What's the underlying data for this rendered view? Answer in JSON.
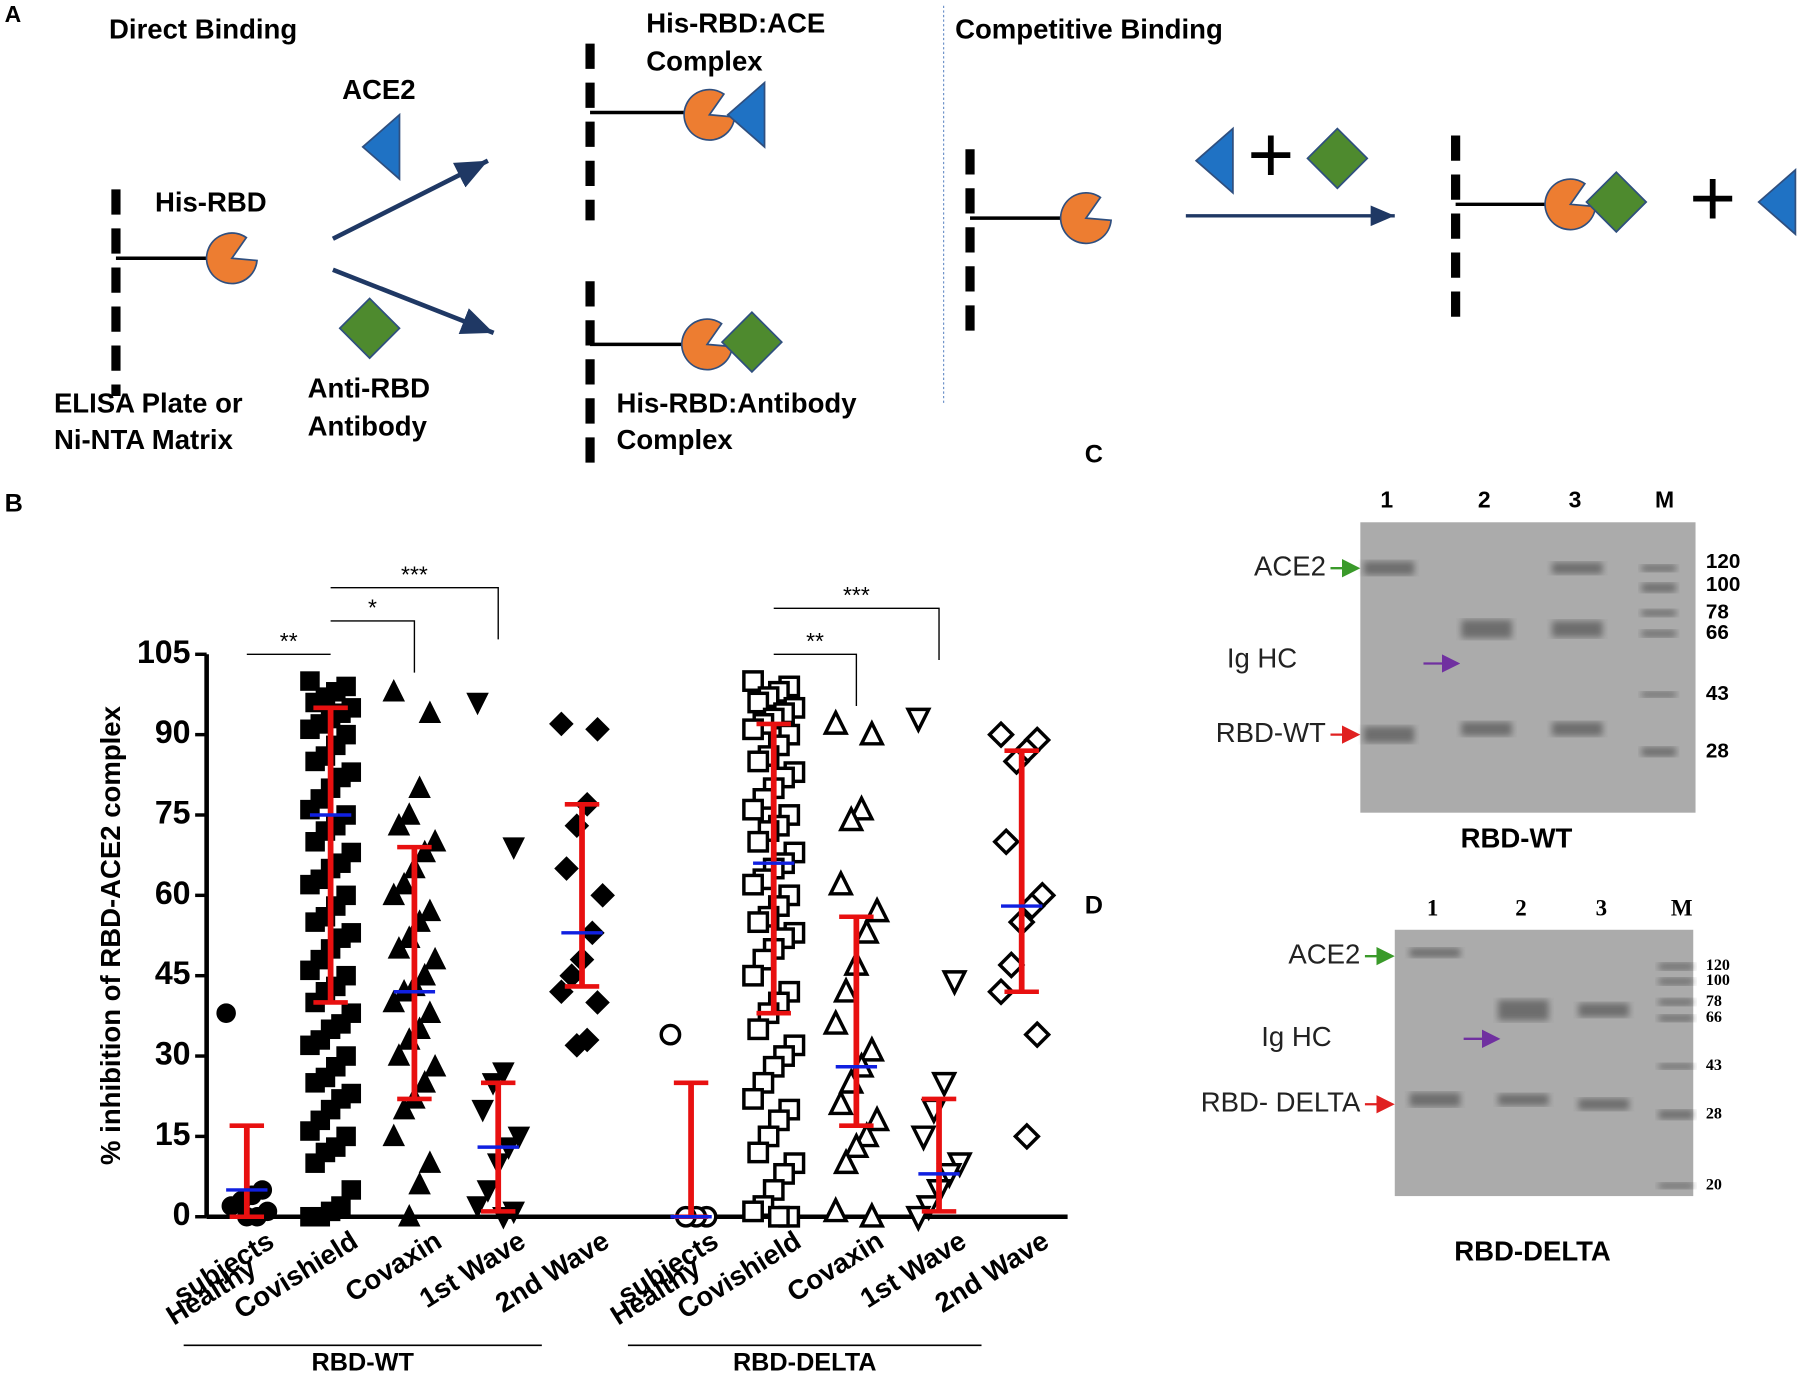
{
  "panel_a": {
    "label": "A",
    "direct_title": "Direct Binding",
    "competitive_title": "Competitive Binding",
    "his_rbd": "His-RBD",
    "ace2": "ACE2",
    "anti_rbd": [
      "Anti-RBD",
      "Antibody"
    ],
    "plate": [
      "ELISA Plate or",
      "Ni-NTA Matrix"
    ],
    "ace_complex": [
      "His-RBD:ACE",
      "Complex"
    ],
    "ab_complex": [
      "His-RBD:Antibody",
      "Complex"
    ],
    "plus": "+"
  },
  "chart_data": {
    "type": "scatter",
    "panel_label": "B",
    "y_label": "% inhibition of RBD-ACE2 complex",
    "ylim": [
      0,
      105
    ],
    "yticks": [
      0,
      15,
      30,
      45,
      60,
      75,
      90,
      105
    ],
    "sections": [
      {
        "name": "RBD-WT",
        "groups": [
          {
            "category": [
              "Healthy",
              "subjects"
            ],
            "marker": "circle",
            "filled": true,
            "median": 5,
            "lower": 0,
            "upper": 17,
            "significance": "**",
            "points": [
              38,
              5,
              4,
              3,
              2,
              1,
              0,
              0
            ]
          },
          {
            "category": "Covishield",
            "marker": "square",
            "filled": true,
            "median": 75,
            "lower": 40,
            "upper": 95,
            "points": [
              100,
              99,
              98,
              97,
              96,
              95,
              94,
              93,
              92,
              91,
              90,
              88,
              86,
              85,
              83,
              82,
              80,
              78,
              76,
              75,
              73,
              72,
              70,
              68,
              66,
              65,
              63,
              62,
              60,
              58,
              56,
              55,
              53,
              52,
              50,
              48,
              46,
              45,
              43,
              42,
              40,
              38,
              36,
              35,
              33,
              32,
              30,
              28,
              26,
              25,
              23,
              22,
              20,
              18,
              16,
              15,
              13,
              12,
              10,
              5,
              2,
              1,
              0,
              0
            ]
          },
          {
            "category": "Covaxin",
            "marker": "triangle",
            "filled": true,
            "median": 42,
            "lower": 22,
            "upper": 69,
            "significance": "*",
            "points": [
              98,
              94,
              80,
              75,
              73,
              70,
              68,
              65,
              62,
              60,
              57,
              55,
              52,
              50,
              48,
              45,
              43,
              42,
              40,
              38,
              35,
              33,
              30,
              28,
              25,
              22,
              20,
              15,
              10,
              6,
              0
            ]
          },
          {
            "category": "1st Wave",
            "marker": "triangle-down",
            "filled": true,
            "median": 13,
            "lower": 1,
            "upper": 25,
            "significance": "***",
            "points": [
              96,
              69,
              27,
              25,
              20,
              15,
              13,
              10,
              5,
              2,
              1,
              0
            ]
          },
          {
            "category": "2nd Wave",
            "marker": "diamond",
            "filled": true,
            "median": 53,
            "lower": 43,
            "upper": 77,
            "points": [
              92,
              91,
              77,
              73,
              65,
              60,
              53,
              48,
              45,
              42,
              40,
              33,
              32
            ]
          }
        ]
      },
      {
        "name": "RBD-DELTA",
        "groups": [
          {
            "category": [
              "Healthy",
              "subjects"
            ],
            "marker": "circle",
            "filled": false,
            "median": 0,
            "lower": 0,
            "upper": 25,
            "points": [
              34,
              0,
              0,
              0
            ]
          },
          {
            "category": "Covishield",
            "marker": "square",
            "filled": false,
            "median": 66,
            "lower": 38,
            "upper": 92,
            "points": [
              100,
              99,
              98,
              97,
              96,
              95,
              94,
              93,
              92,
              91,
              90,
              88,
              86,
              85,
              83,
              82,
              80,
              78,
              76,
              75,
              73,
              72,
              70,
              68,
              66,
              65,
              63,
              62,
              60,
              58,
              56,
              55,
              53,
              52,
              50,
              48,
              45,
              42,
              40,
              38,
              35,
              32,
              30,
              28,
              25,
              22,
              20,
              18,
              15,
              12,
              10,
              8,
              5,
              2,
              1,
              0,
              0
            ]
          },
          {
            "category": "Covaxin",
            "marker": "triangle",
            "filled": false,
            "median": 28,
            "lower": 17,
            "upper": 56,
            "significance": "**",
            "points": [
              92,
              90,
              76,
              74,
              62,
              57,
              53,
              47,
              42,
              36,
              31,
              28,
              25,
              21,
              18,
              15,
              13,
              10,
              1,
              0
            ]
          },
          {
            "category": "1st Wave",
            "marker": "triangle-down",
            "filled": false,
            "median": 8,
            "lower": 1,
            "upper": 22,
            "significance": "***",
            "points": [
              93,
              44,
              25,
              20,
              15,
              10,
              8,
              5,
              2,
              0
            ]
          },
          {
            "category": "2nd Wave",
            "marker": "diamond",
            "filled": false,
            "median": 58,
            "lower": 42,
            "upper": 87,
            "points": [
              90,
              89,
              87,
              85,
              70,
              60,
              58,
              55,
              47,
              42,
              34,
              15
            ]
          }
        ]
      }
    ]
  },
  "panel_c": {
    "label": "C",
    "lanes": [
      "1",
      "2",
      "3",
      "M"
    ],
    "band_labels": [
      "ACE2",
      "Ig HC",
      "RBD-WT"
    ],
    "markers": [
      120,
      100,
      78,
      66,
      43,
      28
    ],
    "caption": "RBD-WT"
  },
  "panel_d": {
    "label": "D",
    "lanes": [
      "1",
      "2",
      "3",
      "M"
    ],
    "band_labels": [
      "ACE2",
      "Ig HC",
      "RBD- DELTA"
    ],
    "markers": [
      120,
      100,
      78,
      66,
      43,
      28,
      20
    ],
    "caption": "RBD-DELTA"
  }
}
